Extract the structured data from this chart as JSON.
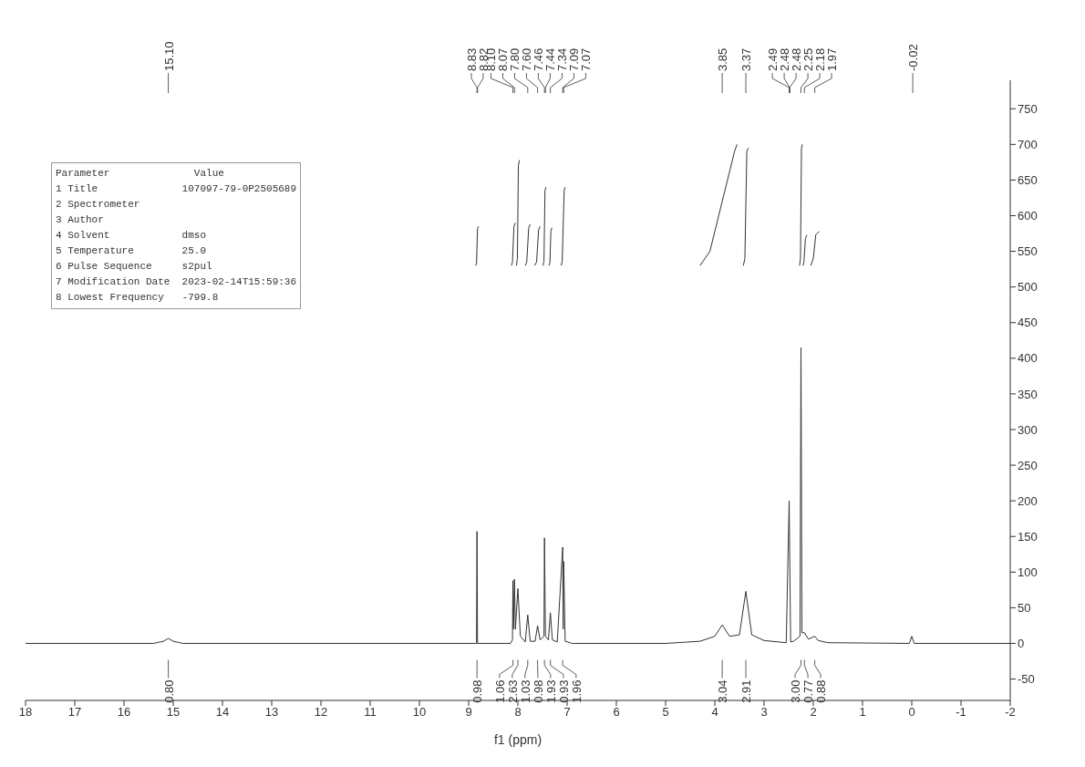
{
  "chart_data": {
    "type": "line",
    "xlabel": "f1 (ppm)",
    "xlim": [
      18,
      -2
    ],
    "xticks": [
      18,
      17,
      16,
      15,
      14,
      13,
      12,
      11,
      10,
      9,
      8,
      7,
      6,
      5,
      4,
      3,
      2,
      1,
      0,
      -1,
      -2
    ],
    "ylim": [
      -80,
      790
    ],
    "yticks": [
      -50,
      0,
      50,
      100,
      150,
      200,
      250,
      300,
      350,
      400,
      450,
      500,
      550,
      600,
      650,
      700,
      750
    ],
    "grid": false,
    "marker": "none",
    "line_style": "solid",
    "series": [
      {
        "color": "#333333",
        "x": [
          18,
          15.4,
          15.2,
          15.1,
          15.0,
          14.8,
          9.0,
          8.84,
          8.83,
          8.82,
          8.15,
          8.11,
          8.1,
          8.09,
          8.07,
          8.05,
          8.0,
          7.95,
          7.85,
          7.8,
          7.75,
          7.65,
          7.6,
          7.55,
          7.47,
          7.46,
          7.44,
          7.38,
          7.34,
          7.3,
          7.2,
          7.09,
          7.08,
          7.07,
          7.04,
          6.9,
          5,
          4.3,
          4.0,
          3.85,
          3.7,
          3.5,
          3.37,
          3.25,
          3.0,
          2.55,
          2.49,
          2.46,
          2.4,
          2.27,
          2.25,
          2.23,
          2.18,
          2.1,
          1.97,
          1.9,
          1.7,
          0.05,
          0.0,
          -0.05,
          -2
        ],
        "values": [
          0,
          0,
          3,
          7,
          3,
          0,
          0,
          0,
          157,
          0,
          0,
          5,
          88,
          20,
          90,
          20,
          77,
          10,
          2,
          40,
          3,
          3,
          25,
          5,
          10,
          148,
          10,
          5,
          43,
          5,
          2,
          135,
          20,
          115,
          3,
          0,
          0,
          3,
          10,
          26,
          10,
          12,
          73,
          12,
          4,
          1,
          200,
          2,
          3,
          10,
          415,
          15,
          15,
          6,
          10,
          4,
          1,
          0,
          10,
          0,
          0
        ]
      },
      {
        "color": "#333333",
        "x": [
          8.86,
          8.84,
          8.82,
          8.8
        ],
        "values": [
          530,
          533,
          582,
          585
        ]
      },
      {
        "color": "#333333",
        "x": [
          8.13,
          8.11,
          8.08,
          8.05
        ],
        "values": [
          530,
          535,
          585,
          590
        ]
      },
      {
        "color": "#333333",
        "x": [
          8.03,
          8.01,
          7.99,
          7.97
        ],
        "values": [
          530,
          540,
          670,
          678
        ]
      },
      {
        "color": "#333333",
        "x": [
          7.85,
          7.82,
          7.78,
          7.75
        ],
        "values": [
          530,
          535,
          583,
          588
        ]
      },
      {
        "color": "#333333",
        "x": [
          7.66,
          7.62,
          7.58,
          7.55
        ],
        "values": [
          530,
          535,
          580,
          585
        ]
      },
      {
        "color": "#333333",
        "x": [
          7.49,
          7.47,
          7.45,
          7.43
        ],
        "values": [
          530,
          536,
          635,
          640
        ]
      },
      {
        "color": "#333333",
        "x": [
          7.37,
          7.35,
          7.33,
          7.31
        ],
        "values": [
          530,
          534,
          578,
          583
        ]
      },
      {
        "color": "#333333",
        "x": [
          7.12,
          7.1,
          7.06,
          7.04
        ],
        "values": [
          530,
          536,
          635,
          640
        ]
      },
      {
        "color": "#333333",
        "x": [
          4.3,
          4.1,
          3.85,
          3.6,
          3.55
        ],
        "values": [
          530,
          550,
          620,
          690,
          700
        ]
      },
      {
        "color": "#333333",
        "x": [
          3.42,
          3.39,
          3.35,
          3.32
        ],
        "values": [
          530,
          540,
          690,
          695
        ]
      },
      {
        "color": "#333333",
        "x": [
          2.28,
          2.26,
          2.24,
          2.22
        ],
        "values": [
          530,
          540,
          695,
          700
        ]
      },
      {
        "color": "#333333",
        "x": [
          2.21,
          2.19,
          2.16,
          2.13
        ],
        "values": [
          530,
          535,
          568,
          573
        ]
      },
      {
        "color": "#333333",
        "x": [
          2.05,
          2.0,
          1.95,
          1.88
        ],
        "values": [
          530,
          540,
          573,
          578
        ]
      }
    ],
    "annotations": [
      {
        "text": "15.10",
        "x": 15.1
      },
      {
        "text": "8.83",
        "x": 8.83
      },
      {
        "text": "8.82",
        "x": 8.82
      },
      {
        "text": "8.10",
        "x": 8.1
      },
      {
        "text": "8.07",
        "x": 8.07
      },
      {
        "text": "7.80",
        "x": 7.8
      },
      {
        "text": "7.60",
        "x": 7.6
      },
      {
        "text": "7.46",
        "x": 7.46
      },
      {
        "text": "7.44",
        "x": 7.44
      },
      {
        "text": "7.34",
        "x": 7.34
      },
      {
        "text": "7.09",
        "x": 7.09
      },
      {
        "text": "7.07",
        "x": 7.07
      },
      {
        "text": "3.85",
        "x": 3.85
      },
      {
        "text": "3.37",
        "x": 3.37
      },
      {
        "text": "2.49",
        "x": 2.49
      },
      {
        "text": "2.48",
        "x": 2.48
      },
      {
        "text": "2.48",
        "x": 2.48
      },
      {
        "text": "2.25",
        "x": 2.25
      },
      {
        "text": "2.18",
        "x": 2.18
      },
      {
        "text": "1.97",
        "x": 1.97
      },
      {
        "text": "-0.02",
        "x": -0.02
      },
      {
        "text": "0.80",
        "x": 15.1
      },
      {
        "text": "0.98",
        "x": 8.83
      },
      {
        "text": "1.06",
        "x": 8.1
      },
      {
        "text": "2.63",
        "x": 8.0
      },
      {
        "text": "1.03",
        "x": 7.8
      },
      {
        "text": "0.98",
        "x": 7.6
      },
      {
        "text": "1.93",
        "x": 7.46
      },
      {
        "text": "0.93",
        "x": 7.34
      },
      {
        "text": "1.96",
        "x": 7.09
      },
      {
        "text": "3.04",
        "x": 3.85
      },
      {
        "text": "2.91",
        "x": 3.37
      },
      {
        "text": "3.00",
        "x": 2.25
      },
      {
        "text": "0.77",
        "x": 2.18
      },
      {
        "text": "0.88",
        "x": 1.97
      },
      "Parameter              Value",
      "1 Title              107097-79-0P2505689",
      "2 Spectrometer",
      "3 Author",
      "4 Solvent            dmso",
      "5 Temperature        25.0",
      "6 Pulse Sequence     s2pul",
      "7 Modification Date  2023-02-14T15:59:36",
      "8 Lowest Frequency   -799.8"
    ]
  }
}
